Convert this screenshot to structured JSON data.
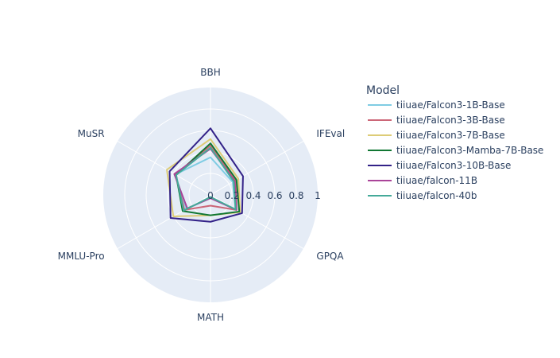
{
  "chart_data": {
    "type": "radar",
    "axes": [
      "BBH",
      "IFEval",
      "GPQA",
      "MATH",
      "MMLU-Pro",
      "MuSR"
    ],
    "radial_ticks": [
      "0",
      "0.2",
      "0.4",
      "0.6",
      "0.8",
      "1"
    ],
    "radial_range": [
      0,
      1
    ],
    "legend_title": "Model",
    "legend_position": "right",
    "background_color": "#e5ecf6",
    "series": [
      {
        "name": "tiiuae/Falcon3-1B-Base",
        "color": "#7fcce3",
        "values": [
          0.35,
          0.24,
          0.27,
          0.03,
          0.26,
          0.38
        ]
      },
      {
        "name": "tiiuae/Falcon3-3B-Base",
        "color": "#cc6677",
        "values": [
          0.46,
          0.27,
          0.28,
          0.1,
          0.28,
          0.38
        ]
      },
      {
        "name": "tiiuae/Falcon3-7B-Base",
        "color": "#ddcc77",
        "values": [
          0.52,
          0.3,
          0.32,
          0.19,
          0.4,
          0.47
        ]
      },
      {
        "name": "tiiuae/Falcon3-Mamba-7B-Base",
        "color": "#117733",
        "values": [
          0.48,
          0.28,
          0.31,
          0.19,
          0.3,
          0.37
        ]
      },
      {
        "name": "tiiuae/Falcon3-10B-Base",
        "color": "#332288",
        "values": [
          0.62,
          0.35,
          0.34,
          0.25,
          0.43,
          0.44
        ]
      },
      {
        "name": "tiiuae/falcon-11B",
        "color": "#aa4499",
        "values": [
          0.43,
          0.26,
          0.28,
          0.03,
          0.25,
          0.39
        ]
      },
      {
        "name": "tiiuae/falcon-40b",
        "color": "#44aa99",
        "values": [
          0.44,
          0.25,
          0.27,
          0.02,
          0.29,
          0.37
        ]
      }
    ]
  }
}
